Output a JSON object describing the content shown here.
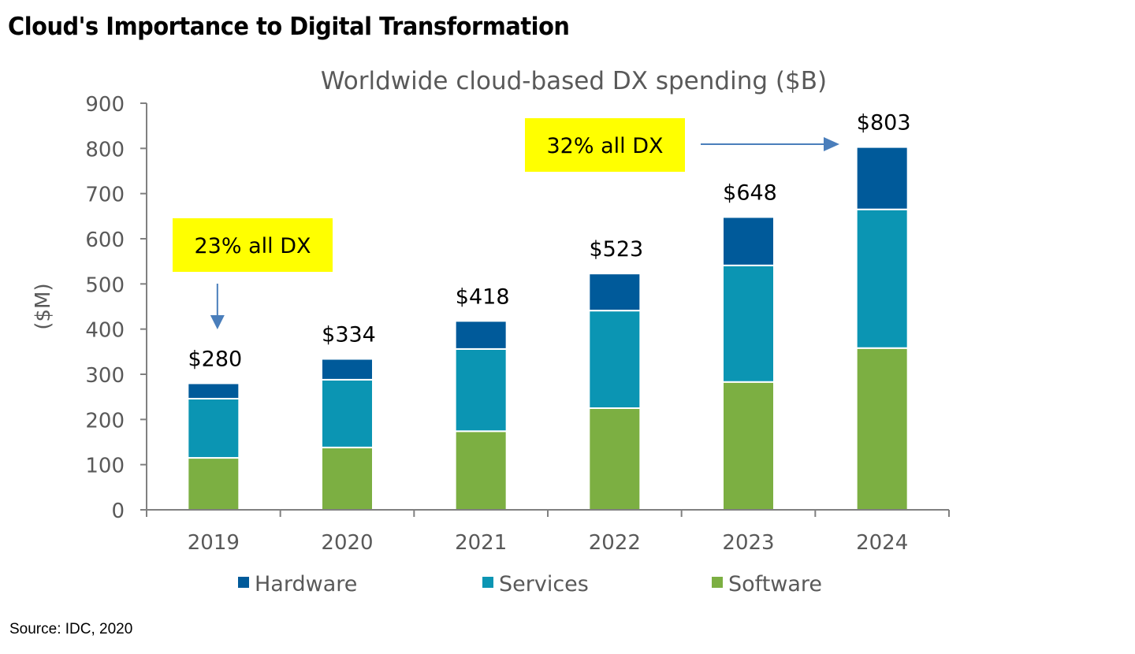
{
  "page_title": "Cloud's Importance to Digital Transformation",
  "source": "Source: IDC, 2020",
  "chart_data": {
    "type": "bar",
    "stacked": true,
    "title": "Worldwide cloud-based DX spending ($B)",
    "xlabel": "",
    "ylabel": "($M)",
    "ylim": [
      0,
      900
    ],
    "yticks": [
      0,
      100,
      200,
      300,
      400,
      500,
      600,
      700,
      800,
      900
    ],
    "grid": false,
    "legend_position": "bottom",
    "categories": [
      "2019",
      "2020",
      "2021",
      "2022",
      "2023",
      "2024"
    ],
    "series": [
      {
        "name": "Software",
        "color": "#7CAF42",
        "values": [
          115,
          138,
          174,
          225,
          283,
          358
        ]
      },
      {
        "name": "Services",
        "color": "#0B95B3",
        "values": [
          131,
          150,
          182,
          216,
          258,
          307
        ]
      },
      {
        "name": "Hardware",
        "color": "#005A9A",
        "values": [
          34,
          46,
          62,
          82,
          107,
          138
        ]
      }
    ],
    "legend_order": [
      "Hardware",
      "Services",
      "Software"
    ],
    "total_labels": [
      "$280",
      "$334",
      "$418",
      "$523",
      "$648",
      "$803"
    ],
    "annotations": [
      {
        "text": "23% all DX",
        "background": "#FFFF00",
        "points_to": "2019",
        "arrow": "down"
      },
      {
        "text": "32% all DX",
        "background": "#FFFF00",
        "points_to": "2024",
        "arrow": "right"
      }
    ],
    "arrow_color": "#4A7EBB",
    "axis_color": "#808080",
    "text_color": "#595959"
  }
}
